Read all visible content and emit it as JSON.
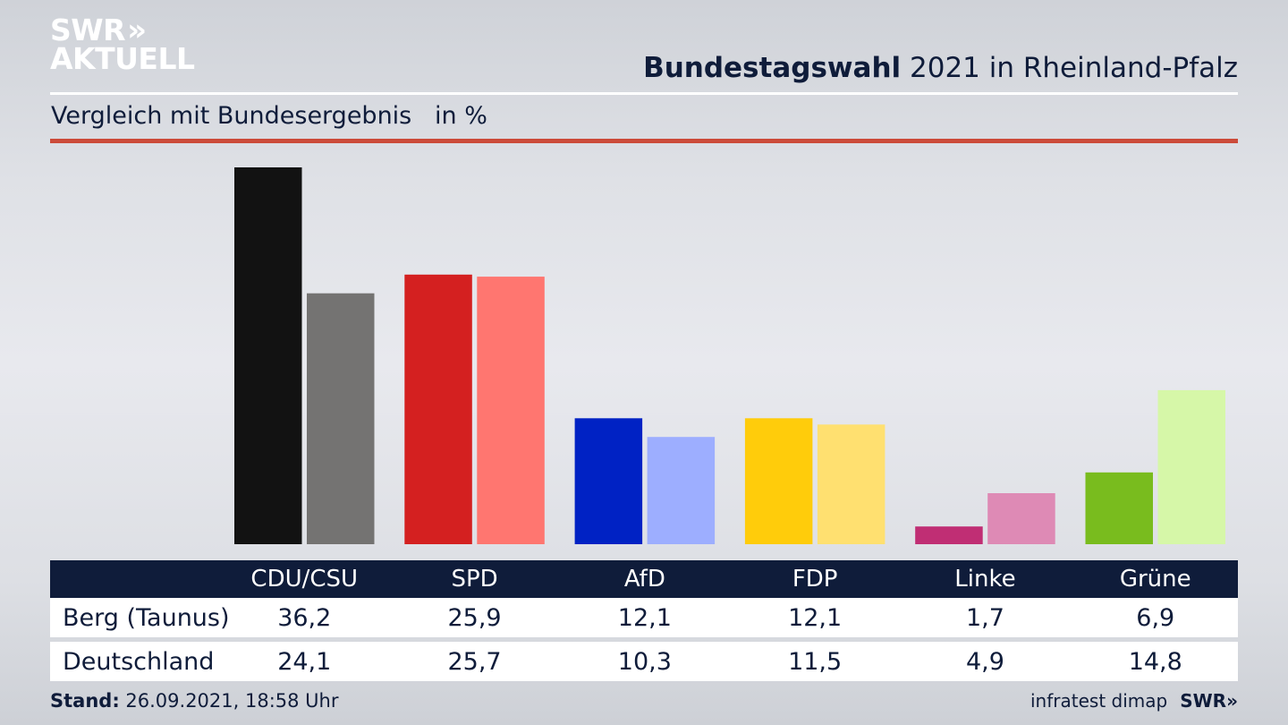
{
  "logo": {
    "line1": "SWR",
    "line1_icon": "»",
    "line2": "AKTUELL"
  },
  "header": {
    "title_bold": "Bundestagswahl",
    "title_rest": " 2021 in Rheinland-Pfalz",
    "subtitle": "Vergleich mit Bundesergebnis   in %"
  },
  "colors": {
    "title_text": "#0f1c3a",
    "accent_rule": "#cc4b3a",
    "table_header_bg": "#0f1c3a"
  },
  "chart_data": {
    "type": "bar",
    "title": "Bundestagswahl 2021 in Rheinland-Pfalz",
    "subtitle": "Vergleich mit Bundesergebnis in %",
    "xlabel": "",
    "ylabel": "in %",
    "ylim": [
      0,
      36.2
    ],
    "grid": false,
    "legend": "table-bottom",
    "categories": [
      "CDU/CSU",
      "SPD",
      "AfD",
      "FDP",
      "Linke",
      "Grüne"
    ],
    "series": [
      {
        "name": "Berg (Taunus)",
        "values": [
          36.2,
          25.9,
          12.1,
          12.1,
          1.7,
          6.9
        ],
        "labels": [
          "36,2",
          "25,9",
          "12,1",
          "12,1",
          "1,7",
          "6,9"
        ],
        "colors": [
          "#121212",
          "#d42020",
          "#0022c4",
          "#ffcc0b",
          "#c02e74",
          "#79bc1e"
        ]
      },
      {
        "name": "Deutschland",
        "values": [
          24.1,
          25.7,
          10.3,
          11.5,
          4.9,
          14.8
        ],
        "labels": [
          "24,1",
          "25,7",
          "10,3",
          "11,5",
          "4,9",
          "14,8"
        ],
        "colors": [
          "#747372",
          "#ff7670",
          "#9daeff",
          "#ffe070",
          "#de8ab5",
          "#d6f7a8"
        ]
      }
    ]
  },
  "footer": {
    "stand_label": "Stand:",
    "stand_value": " 26.09.2021, 18:58 Uhr",
    "source": "infratest dimap",
    "source_logo": "SWR»"
  }
}
